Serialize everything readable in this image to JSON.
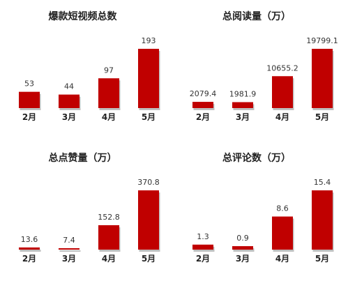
{
  "colors": {
    "bar": "#c00000",
    "bar_shadow": "#bfbfbf",
    "text": "#222222"
  },
  "chart_data": [
    {
      "type": "bar",
      "title": "爆款短视频总数",
      "categories": [
        "2月",
        "3月",
        "4月",
        "5月"
      ],
      "values": [
        53,
        44,
        97,
        193
      ],
      "value_labels": [
        "53",
        "44",
        "97",
        "193"
      ]
    },
    {
      "type": "bar",
      "title": "总阅读量（万）",
      "categories": [
        "2月",
        "3月",
        "4月",
        "5月"
      ],
      "values": [
        2079.4,
        1981.9,
        10655.2,
        19799.1
      ],
      "value_labels": [
        "2079.4",
        "1981.9",
        "10655.2",
        "19799.1"
      ]
    },
    {
      "type": "bar",
      "title": "总点赞量（万）",
      "categories": [
        "2月",
        "3月",
        "4月",
        "5月"
      ],
      "values": [
        13.6,
        7.4,
        152.8,
        370.8
      ],
      "value_labels": [
        "13.6",
        "7.4",
        "152.8",
        "370.8"
      ]
    },
    {
      "type": "bar",
      "title": "总评论数（万）",
      "categories": [
        "2月",
        "3月",
        "4月",
        "5月"
      ],
      "values": [
        1.3,
        0.9,
        8.6,
        15.4
      ],
      "value_labels": [
        "1.3",
        "0.9",
        "8.6",
        "15.4"
      ]
    }
  ]
}
